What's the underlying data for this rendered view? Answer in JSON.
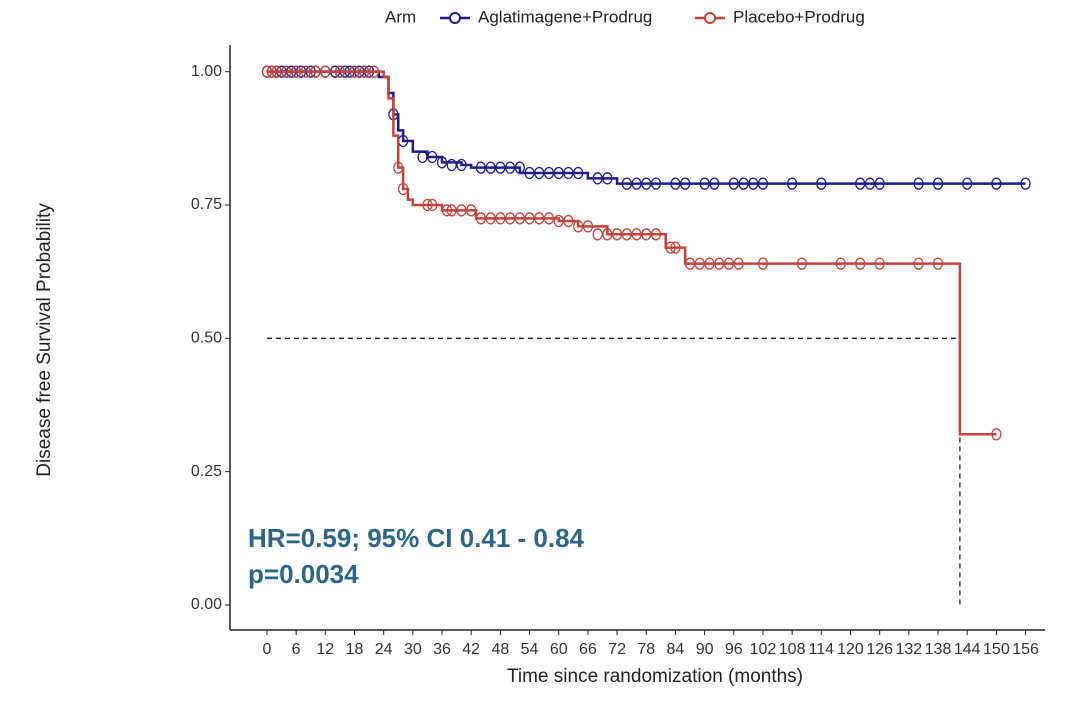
{
  "chart_data": {
    "type": "km",
    "legend_title": "Arm",
    "y_label": "Disease free Survival Probability",
    "x_label": "Time since randomization (months)",
    "annotations": [
      "HR=0.59; 95% CI 0.41 - 0.84",
      "p=0.0034"
    ],
    "annotation_color": "#2b6689",
    "xlim": [
      -7.6,
      160
    ],
    "ylim": [
      -0.047,
      1.05
    ],
    "xticks": [
      0,
      6,
      12,
      18,
      24,
      30,
      36,
      42,
      48,
      54,
      60,
      66,
      72,
      78,
      84,
      90,
      96,
      102,
      108,
      114,
      120,
      126,
      132,
      138,
      144,
      150,
      156
    ],
    "yticks": [
      {
        "value": 0,
        "label": "0.00"
      },
      {
        "value": 0.25,
        "label": "0.25"
      },
      {
        "value": 0.5,
        "label": "0.50"
      },
      {
        "value": 0.75,
        "label": "0.75"
      },
      {
        "value": 1,
        "label": "1.00"
      }
    ],
    "median_line": {
      "y": 0.5,
      "x": 142.5
    },
    "series": [
      {
        "name": "Aglatimagene+Prodrug",
        "color": "#1f1a8e",
        "x": [
          0,
          23,
          25,
          26,
          27,
          28,
          30,
          33,
          36,
          40,
          42,
          52,
          66,
          72,
          156
        ],
        "values": [
          1,
          0.99,
          0.96,
          0.92,
          0.89,
          0.87,
          0.85,
          0.84,
          0.83,
          0.825,
          0.82,
          0.81,
          0.8,
          0.79,
          0.79
        ],
        "censored_x": [
          0,
          1,
          2,
          3,
          4,
          5,
          6,
          7,
          9,
          10,
          12,
          14,
          15,
          16,
          17,
          18,
          19,
          20,
          21,
          26,
          28,
          32,
          34,
          36,
          38,
          40,
          44,
          46,
          48,
          50,
          52,
          54,
          56,
          58,
          60,
          62,
          64,
          68,
          70,
          74,
          76,
          78,
          80,
          84,
          86,
          90,
          92,
          96,
          98,
          100,
          102,
          108,
          114,
          122,
          124,
          126,
          134,
          138,
          144,
          150,
          156
        ],
        "censored_y": [
          1,
          1,
          1,
          1,
          1,
          1,
          1,
          1,
          1,
          1,
          1,
          1,
          1,
          1,
          1,
          1,
          1,
          1,
          1,
          0.92,
          0.87,
          0.84,
          0.84,
          0.83,
          0.825,
          0.825,
          0.82,
          0.82,
          0.82,
          0.82,
          0.82,
          0.81,
          0.81,
          0.81,
          0.81,
          0.81,
          0.81,
          0.8,
          0.8,
          0.79,
          0.79,
          0.79,
          0.79,
          0.79,
          0.79,
          0.79,
          0.79,
          0.79,
          0.79,
          0.79,
          0.79,
          0.79,
          0.79,
          0.79,
          0.79,
          0.79,
          0.79,
          0.79,
          0.79,
          0.79,
          0.79
        ]
      },
      {
        "name": "Placebo+Prodrug",
        "color": "#c8403a",
        "x": [
          0,
          24,
          25,
          26,
          27,
          28,
          29,
          30,
          36,
          43,
          60,
          64,
          70,
          82,
          86,
          142.5,
          150
        ],
        "values": [
          1,
          0.99,
          0.95,
          0.88,
          0.82,
          0.78,
          0.76,
          0.75,
          0.74,
          0.725,
          0.72,
          0.71,
          0.695,
          0.67,
          0.64,
          0.32,
          0.32
        ],
        "censored_x": [
          0,
          1,
          2,
          4,
          6,
          8,
          10,
          12,
          15,
          18,
          20,
          22,
          27,
          28,
          33,
          34,
          37,
          38,
          40,
          42,
          44,
          46,
          48,
          50,
          52,
          54,
          56,
          58,
          60,
          62,
          64,
          66,
          68,
          70,
          72,
          74,
          76,
          78,
          80,
          83,
          84,
          87,
          89,
          91,
          93,
          95,
          97,
          102,
          110,
          118,
          122,
          126,
          134,
          138,
          150
        ],
        "censored_y": [
          1,
          1,
          1,
          1,
          1,
          1,
          1,
          1,
          1,
          1,
          1,
          1,
          0.82,
          0.78,
          0.75,
          0.75,
          0.74,
          0.74,
          0.74,
          0.74,
          0.725,
          0.725,
          0.725,
          0.725,
          0.725,
          0.725,
          0.725,
          0.725,
          0.72,
          0.72,
          0.71,
          0.71,
          0.695,
          0.695,
          0.695,
          0.695,
          0.695,
          0.695,
          0.695,
          0.67,
          0.67,
          0.64,
          0.64,
          0.64,
          0.64,
          0.64,
          0.64,
          0.64,
          0.64,
          0.64,
          0.64,
          0.64,
          0.64,
          0.64,
          0.32
        ]
      }
    ]
  }
}
